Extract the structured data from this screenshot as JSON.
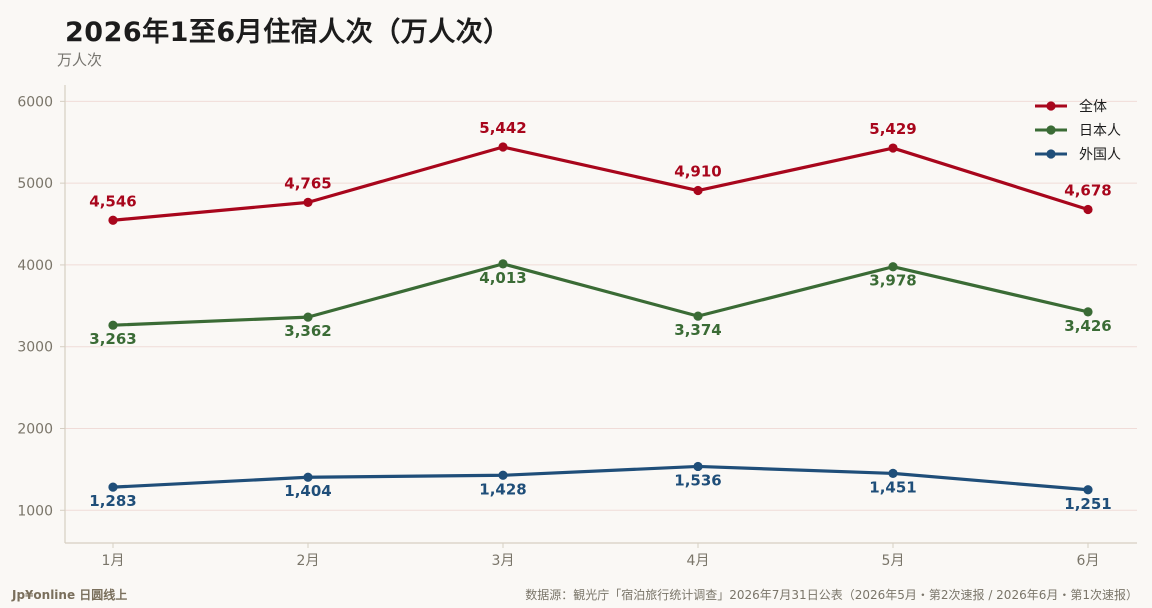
{
  "title": "2026年1至6月住宿人次（万人次）",
  "unit_label": "万人次",
  "footer": {
    "brand": "Jp¥online 日圆线上",
    "source": "数据源：観光庁「宿泊旅行统计调查」2026年7月31日公表（2026年5月・第2次速报 / 2026年6月・第1次速报）"
  },
  "colors": {
    "all": "#a8061c",
    "japanese": "#3a6b35",
    "foreign": "#1f4e79",
    "grid": "#f0dcd8",
    "axis": "#d6cfc2",
    "tick_text": "#7a7569"
  },
  "chart_data": {
    "type": "line",
    "categories": [
      "1月",
      "2月",
      "3月",
      "4月",
      "5月",
      "6月"
    ],
    "ylim": [
      600,
      6200
    ],
    "yticks": [
      1000,
      2000,
      3000,
      4000,
      5000,
      6000
    ],
    "ylabel": "万人次",
    "xlabel": "",
    "grid": true,
    "legend_position": "top-right",
    "series": [
      {
        "name": "全体",
        "color_key": "all",
        "values": [
          4546,
          4765,
          5442,
          4910,
          5429,
          4678
        ],
        "labels": [
          "4,546",
          "4,765",
          "5,442",
          "4,910",
          "5,429",
          "4,678"
        ],
        "label_position": "above"
      },
      {
        "name": "日本人",
        "color_key": "japanese",
        "values": [
          3263,
          3362,
          4013,
          3374,
          3978,
          3426
        ],
        "labels": [
          "3,263",
          "3,362",
          "4,013",
          "3,374",
          "3,978",
          "3,426"
        ],
        "label_position": "below"
      },
      {
        "name": "外国人",
        "color_key": "foreign",
        "values": [
          1283,
          1404,
          1428,
          1536,
          1451,
          1251
        ],
        "labels": [
          "1,283",
          "1,404",
          "1,428",
          "1,536",
          "1,451",
          "1,251"
        ],
        "label_position": "below"
      }
    ]
  }
}
